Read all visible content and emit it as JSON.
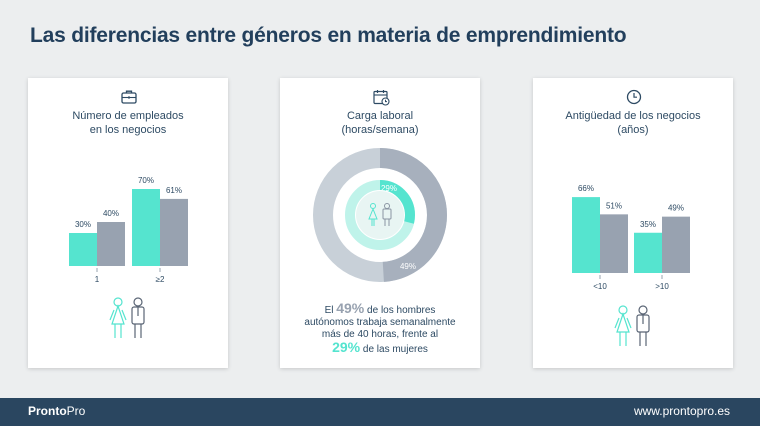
{
  "page_title": "Las diferencias entre géneros en materia de emprendimiento",
  "colors": {
    "women": "#55e4cf",
    "men": "#98a2b0",
    "men_dark": "#a7b0bd",
    "women_light": "#e8f5f3",
    "text": "#2d4a63",
    "footer": "#2a4660"
  },
  "footer": {
    "brand_bold": "Pronto",
    "brand_light": "Pro",
    "website": "www.prontopro.es"
  },
  "chart_data": [
    {
      "type": "bar",
      "title_line1": "Número de empleados",
      "title_line2": "en los negocios",
      "icon": "briefcase-icon",
      "categories": [
        "1",
        "≥2"
      ],
      "series": [
        {
          "values": [
            30,
            70
          ],
          "labels": [
            "30%",
            "70%"
          ],
          "color": "#55e4cf"
        },
        {
          "values": [
            40,
            61
          ],
          "labels": [
            "40%",
            "61%"
          ],
          "color": "#98a2b0"
        }
      ]
    },
    {
      "type": "pie",
      "title_line1": "Carga laboral",
      "title_line2": "(horas/semana)",
      "icon": "calendar-clock-icon",
      "rings": [
        {
          "value": 49,
          "label": "49%",
          "color": "#a7b0bd"
        },
        {
          "value": 29,
          "label": "29%",
          "color": "#55e4cf"
        }
      ],
      "statement": {
        "part1": "El ",
        "men_value": "49%",
        "part2": " de los hombres",
        "line2": "autónomos trabaja semanalmente",
        "line3": "más de 40 horas, frente al",
        "women_value": "29%",
        "part4": " de las mujeres"
      }
    },
    {
      "type": "bar",
      "title_line1": "Antigüedad de los negocios",
      "title_line2": "(años)",
      "icon": "clock-icon",
      "categories": [
        "<10",
        ">10"
      ],
      "series": [
        {
          "values": [
            66,
            35
          ],
          "labels": [
            "66%",
            "35%"
          ],
          "color": "#55e4cf"
        },
        {
          "values": [
            51,
            49
          ],
          "labels": [
            "51%",
            "49%"
          ],
          "color": "#98a2b0"
        }
      ]
    }
  ]
}
